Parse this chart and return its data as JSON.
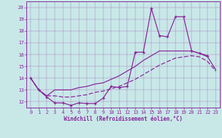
{
  "xlabel": "Windchill (Refroidissement éolien,°C)",
  "bg_color": "#c8e8e8",
  "line_color": "#882299",
  "xlim": [
    -0.5,
    23.5
  ],
  "ylim": [
    11.5,
    20.5
  ],
  "xticks": [
    0,
    1,
    2,
    3,
    4,
    5,
    6,
    7,
    8,
    9,
    10,
    11,
    12,
    13,
    14,
    15,
    16,
    17,
    18,
    19,
    20,
    21,
    22,
    23
  ],
  "yticks": [
    12,
    13,
    14,
    15,
    16,
    17,
    18,
    19,
    20
  ],
  "line1_x": [
    0,
    1,
    2,
    3,
    4,
    5,
    6,
    7,
    8,
    9,
    10,
    11,
    12,
    13,
    14,
    15,
    16,
    17,
    18,
    19,
    20,
    21,
    22
  ],
  "line1_y": [
    14.0,
    13.0,
    12.4,
    11.9,
    11.9,
    11.7,
    11.9,
    11.85,
    11.85,
    12.3,
    13.3,
    13.2,
    13.3,
    16.2,
    16.2,
    19.9,
    17.6,
    17.5,
    19.2,
    19.2,
    16.3,
    16.1,
    15.9
  ],
  "line2_x": [
    0,
    1,
    2,
    3,
    4,
    5,
    6,
    7,
    8,
    9,
    10,
    11,
    12,
    13,
    14,
    15,
    16,
    17,
    18,
    19,
    20,
    21,
    22,
    23
  ],
  "line2_y": [
    14.0,
    13.0,
    12.5,
    13.0,
    13.0,
    13.0,
    13.2,
    13.3,
    13.5,
    13.6,
    13.9,
    14.2,
    14.6,
    15.0,
    15.5,
    15.9,
    16.3,
    16.3,
    16.3,
    16.3,
    16.3,
    16.1,
    15.8,
    14.7
  ],
  "line3_x": [
    0,
    1,
    2,
    3,
    4,
    5,
    6,
    7,
    8,
    9,
    10,
    11,
    12,
    13,
    14,
    15,
    16,
    17,
    18,
    19,
    20,
    21,
    22,
    23
  ],
  "line3_y": [
    14.0,
    13.0,
    12.5,
    12.5,
    12.4,
    12.4,
    12.5,
    12.6,
    12.8,
    12.9,
    13.1,
    13.3,
    13.6,
    13.9,
    14.3,
    14.7,
    15.1,
    15.4,
    15.7,
    15.8,
    15.9,
    15.8,
    15.4,
    14.6
  ]
}
